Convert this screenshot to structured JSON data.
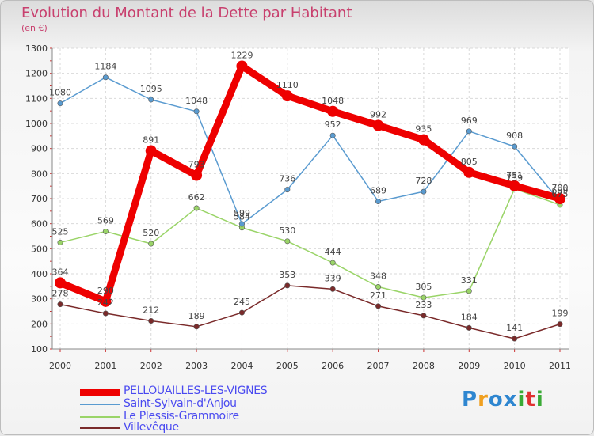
{
  "header": {
    "title": "Evolution du Montant de la Dette par Habitant",
    "subtitle": "(en €)"
  },
  "logo": {
    "text": "Proxiti",
    "colors": [
      "#2e86d0",
      "#f0a020",
      "#2e86d0",
      "#2e86d0",
      "#3aaa35",
      "#e03030",
      "#3aaa35"
    ]
  },
  "chart_data": {
    "type": "line",
    "title": "Evolution du Montant de la Dette par Habitant",
    "ylabel": "(en €)",
    "xlabel": "",
    "x": [
      "2000",
      "2001",
      "2002",
      "2003",
      "2004",
      "2005",
      "2006",
      "2007",
      "2008",
      "2009",
      "2010",
      "2011"
    ],
    "ylim": [
      100,
      1300
    ],
    "yticks": [
      100,
      200,
      300,
      400,
      500,
      600,
      700,
      800,
      900,
      1000,
      1100,
      1200,
      1300
    ],
    "grid": true,
    "legend_position": "bottom-left",
    "series": [
      {
        "name": "PELLOUAILLES-LES-VIGNES",
        "color": "#ee0000",
        "values": [
          364,
          290,
          891,
          793,
          1229,
          1110,
          1048,
          992,
          935,
          805,
          751,
          700
        ],
        "labels": [
          "364",
          "290",
          "891",
          "793",
          "1229",
          "1110",
          "1048",
          "992",
          "935",
          "805",
          "751",
          "700"
        ]
      },
      {
        "name": "Saint-Sylvain-d'Anjou",
        "color": "#5a9bd0",
        "values": [
          1080,
          1184,
          1095,
          1048,
          599,
          736,
          952,
          689,
          728,
          969,
          908,
          689
        ],
        "labels": [
          "1080",
          "1184",
          "1095",
          "1048",
          "599",
          "736",
          "952",
          "689",
          "728",
          "969",
          "908",
          "689"
        ]
      },
      {
        "name": "Le Plessis-Grammoire",
        "color": "#9ad468",
        "values": [
          525,
          569,
          520,
          662,
          584,
          530,
          444,
          348,
          305,
          331,
          739,
          675
        ],
        "labels": [
          "525",
          "569",
          "520",
          "662",
          "584",
          "530",
          "444",
          "348",
          "305",
          "331",
          "739",
          "675"
        ]
      },
      {
        "name": "Villevêque",
        "color": "#7a2a2a",
        "values": [
          278,
          242,
          212,
          189,
          245,
          353,
          339,
          271,
          233,
          184,
          141,
          199
        ],
        "labels": [
          "278",
          "242",
          "212",
          "189",
          "245",
          "353",
          "339",
          "271",
          "233",
          "184",
          "141",
          "199"
        ]
      }
    ]
  }
}
